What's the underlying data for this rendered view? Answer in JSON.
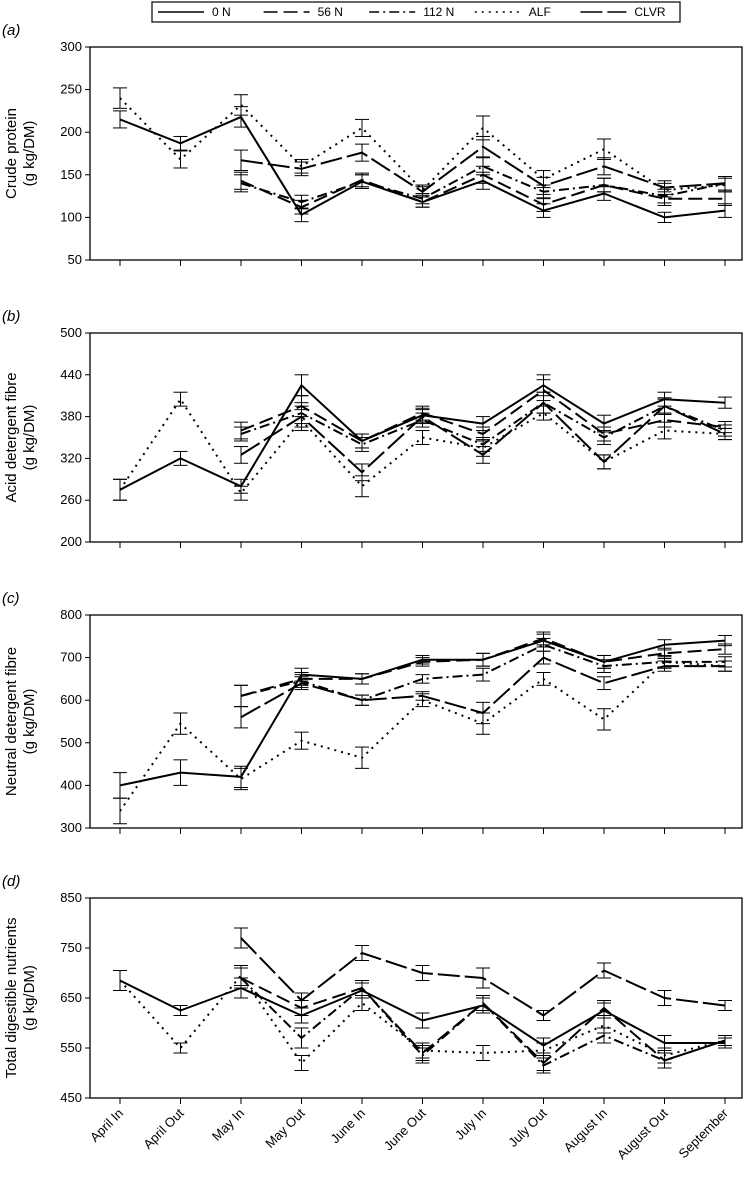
{
  "legend": {
    "entries": [
      {
        "label": "0 N",
        "dash": "solid"
      },
      {
        "label": "56 N",
        "dash": "dashed"
      },
      {
        "label": "112 N",
        "dash": "dashdot"
      },
      {
        "label": "ALF",
        "dash": "dotted"
      },
      {
        "label": "CLVR",
        "dash": "longdash"
      }
    ]
  },
  "chart_data": [
    {
      "type": "line",
      "panel": "(a)",
      "ylabel_lines": [
        "Crude protein",
        "(g kg/DM)"
      ],
      "ylim": [
        50,
        300
      ],
      "yticks": [
        50,
        100,
        150,
        200,
        250,
        300
      ],
      "categories": [
        "April In",
        "April Out",
        "May In",
        "May Out",
        "June In",
        "June Out",
        "July In",
        "July Out",
        "August In",
        "August Out",
        "September"
      ],
      "series": [
        {
          "name": "0 N",
          "values": [
            215,
            187,
            218,
            103,
            142,
            118,
            143,
            108,
            128,
            100,
            108
          ],
          "errors": [
            10,
            8,
            12,
            8,
            8,
            6,
            10,
            8,
            8,
            6,
            8
          ]
        },
        {
          "name": "56 N",
          "values": [
            null,
            null,
            143,
            112,
            144,
            118,
            150,
            115,
            138,
            122,
            122
          ],
          "errors": [
            null,
            null,
            10,
            8,
            8,
            6,
            10,
            8,
            8,
            8,
            8
          ]
        },
        {
          "name": "112 N",
          "values": [
            null,
            null,
            140,
            118,
            142,
            122,
            160,
            130,
            138,
            125,
            140
          ],
          "errors": [
            null,
            null,
            10,
            8,
            8,
            6,
            10,
            8,
            8,
            8,
            8
          ]
        },
        {
          "name": "ALF",
          "values": [
            240,
            168,
            232,
            160,
            205,
            132,
            205,
            145,
            180,
            132,
            138
          ],
          "errors": [
            12,
            10,
            12,
            8,
            10,
            6,
            14,
            10,
            12,
            8,
            8
          ]
        },
        {
          "name": "CLVR",
          "values": [
            null,
            null,
            167,
            157,
            176,
            130,
            183,
            137,
            160,
            135,
            140
          ],
          "errors": [
            null,
            null,
            12,
            8,
            10,
            6,
            12,
            10,
            10,
            8,
            8
          ]
        }
      ]
    },
    {
      "type": "line",
      "panel": "(b)",
      "ylabel_lines": [
        "Acid detergent fibre",
        "(g kg/DM)"
      ],
      "ylim": [
        200,
        500
      ],
      "yticks": [
        200,
        260,
        320,
        380,
        440,
        500
      ],
      "categories": [
        "April In",
        "April Out",
        "May In",
        "May Out",
        "June In",
        "June Out",
        "July In",
        "July Out",
        "August In",
        "August Out",
        "September"
      ],
      "series": [
        {
          "name": "0 N",
          "values": [
            275,
            320,
            280,
            425,
            345,
            382,
            370,
            425,
            370,
            405,
            400
          ],
          "errors": [
            15,
            10,
            10,
            15,
            10,
            10,
            10,
            15,
            12,
            10,
            8
          ]
        },
        {
          "name": "56 N",
          "values": [
            null,
            null,
            360,
            395,
            345,
            385,
            355,
            418,
            355,
            375,
            365
          ],
          "errors": [
            null,
            null,
            12,
            15,
            10,
            10,
            10,
            15,
            10,
            10,
            8
          ]
        },
        {
          "name": "112 N",
          "values": [
            null,
            null,
            355,
            385,
            340,
            375,
            340,
            400,
            350,
            395,
            360
          ],
          "errors": [
            null,
            null,
            10,
            15,
            10,
            10,
            10,
            15,
            10,
            10,
            8
          ]
        },
        {
          "name": "ALF",
          "values": [
            275,
            405,
            270,
            375,
            280,
            350,
            335,
            385,
            315,
            360,
            355
          ],
          "errors": [
            15,
            10,
            10,
            15,
            15,
            10,
            12,
            10,
            10,
            12,
            8
          ]
        },
        {
          "name": "CLVR",
          "values": [
            null,
            null,
            325,
            380,
            300,
            380,
            325,
            400,
            315,
            395,
            355
          ],
          "errors": [
            null,
            null,
            12,
            15,
            12,
            10,
            12,
            15,
            10,
            12,
            8
          ]
        }
      ]
    },
    {
      "type": "line",
      "panel": "(c)",
      "ylabel_lines": [
        "Neutral detergent fibre",
        "(g kg/DM)"
      ],
      "ylim": [
        300,
        800
      ],
      "yticks": [
        300,
        400,
        500,
        600,
        700,
        800
      ],
      "categories": [
        "April In",
        "April Out",
        "May In",
        "May Out",
        "June In",
        "June Out",
        "July In",
        "July Out",
        "August In",
        "August Out",
        "September"
      ],
      "series": [
        {
          "name": "0 N",
          "values": [
            400,
            430,
            420,
            660,
            650,
            695,
            695,
            740,
            690,
            730,
            740
          ],
          "errors": [
            30,
            30,
            25,
            15,
            12,
            10,
            15,
            15,
            15,
            12,
            12
          ]
        },
        {
          "name": "56 N",
          "values": [
            null,
            null,
            610,
            650,
            650,
            690,
            695,
            745,
            690,
            710,
            720
          ],
          "errors": [
            null,
            null,
            25,
            15,
            12,
            10,
            15,
            15,
            15,
            12,
            12
          ]
        },
        {
          "name": "112 N",
          "values": [
            null,
            null,
            610,
            645,
            600,
            650,
            660,
            730,
            680,
            690,
            690
          ],
          "errors": [
            null,
            null,
            25,
            15,
            12,
            10,
            15,
            15,
            15,
            12,
            12
          ]
        },
        {
          "name": "ALF",
          "values": [
            340,
            545,
            415,
            505,
            465,
            600,
            545,
            650,
            555,
            690,
            680
          ],
          "errors": [
            30,
            25,
            25,
            20,
            25,
            15,
            25,
            15,
            25,
            15,
            12
          ]
        },
        {
          "name": "CLVR",
          "values": [
            null,
            null,
            560,
            640,
            600,
            610,
            570,
            700,
            640,
            680,
            680
          ],
          "errors": [
            null,
            null,
            25,
            15,
            12,
            10,
            25,
            15,
            15,
            12,
            12
          ]
        }
      ]
    },
    {
      "type": "line",
      "panel": "(d)",
      "ylabel_lines": [
        "Total digestible nutrients",
        "(g kg/DM)"
      ],
      "ylim": [
        450,
        850
      ],
      "yticks": [
        450,
        550,
        650,
        750,
        850
      ],
      "categories": [
        "April In",
        "April Out",
        "May In",
        "May Out",
        "June In",
        "June Out",
        "July In",
        "July Out",
        "August In",
        "August Out",
        "September"
      ],
      "series": [
        {
          "name": "0 N",
          "values": [
            685,
            625,
            670,
            615,
            665,
            605,
            635,
            555,
            625,
            560,
            560
          ],
          "errors": [
            20,
            10,
            20,
            15,
            15,
            15,
            15,
            15,
            15,
            15,
            10
          ]
        },
        {
          "name": "56 N",
          "values": [
            null,
            null,
            690,
            630,
            670,
            540,
            640,
            520,
            630,
            525,
            565
          ],
          "errors": [
            null,
            null,
            20,
            15,
            15,
            15,
            15,
            15,
            15,
            15,
            10
          ]
        },
        {
          "name": "112 N",
          "values": [
            null,
            null,
            690,
            570,
            670,
            535,
            640,
            515,
            575,
            525,
            565
          ],
          "errors": [
            null,
            null,
            20,
            20,
            15,
            15,
            15,
            15,
            15,
            15,
            10
          ]
        },
        {
          "name": "ALF",
          "values": [
            685,
            550,
            695,
            520,
            640,
            545,
            540,
            545,
            595,
            535,
            565
          ],
          "errors": [
            20,
            10,
            20,
            15,
            15,
            15,
            15,
            15,
            15,
            15,
            10
          ]
        },
        {
          "name": "CLVR",
          "values": [
            null,
            null,
            770,
            645,
            740,
            700,
            690,
            615,
            705,
            650,
            635
          ],
          "errors": [
            null,
            null,
            20,
            15,
            15,
            15,
            20,
            10,
            15,
            15,
            10
          ]
        }
      ]
    }
  ]
}
